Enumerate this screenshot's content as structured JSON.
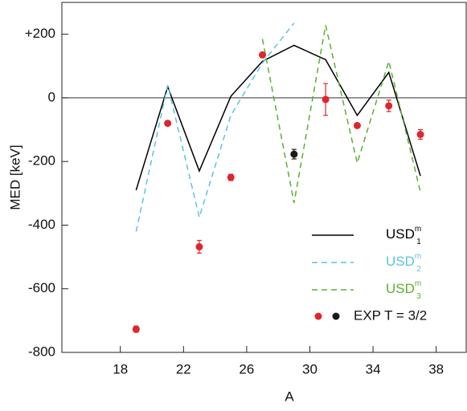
{
  "chart_data": {
    "type": "line",
    "x_label": "A",
    "y_label": "MED [keV]",
    "xlim": [
      14.3,
      39.9
    ],
    "ylim": [
      -800,
      300
    ],
    "xticks": [
      18,
      22,
      26,
      30,
      34,
      38
    ],
    "yticks": [
      {
        "value": 200,
        "label": "+200"
      },
      0,
      -200,
      -400,
      -600,
      -800
    ],
    "x": [
      19,
      21,
      23,
      25,
      27,
      29,
      31,
      33,
      35,
      37
    ],
    "series": [
      {
        "name": "USD",
        "superscript": "m",
        "subscript": "1",
        "color": "#000000",
        "dash": false,
        "values": [
          -290,
          35,
          -230,
          5,
          115,
          165,
          120,
          -55,
          80,
          -245
        ]
      },
      {
        "name": "USD",
        "superscript": "m",
        "subscript": "2",
        "color": "#5bc3e0",
        "dash": true,
        "values": [
          -420,
          40,
          -375,
          -55,
          110,
          235,
          null,
          null,
          null,
          null
        ]
      },
      {
        "name": "USD",
        "superscript": "m",
        "subscript": "3",
        "color": "#5ab032",
        "dash": true,
        "values": [
          null,
          null,
          null,
          null,
          185,
          -330,
          228,
          -205,
          115,
          -295
        ]
      }
    ],
    "points": {
      "name": "EXP T = 3/2",
      "color": "#e0262b",
      "colors": [
        "#e0262b",
        "#e0262b",
        "#e0262b",
        "#e0262b",
        "#e0262b",
        "#1a1a1a",
        "#e0262b",
        "#e0262b",
        "#e0262b",
        "#e0262b"
      ],
      "values": [
        -727,
        -80,
        -468,
        -250,
        135,
        -177,
        -5,
        -87,
        -25,
        -115
      ],
      "errors": [
        10,
        0,
        20,
        10,
        0,
        15,
        50,
        0,
        18,
        15
      ]
    }
  }
}
